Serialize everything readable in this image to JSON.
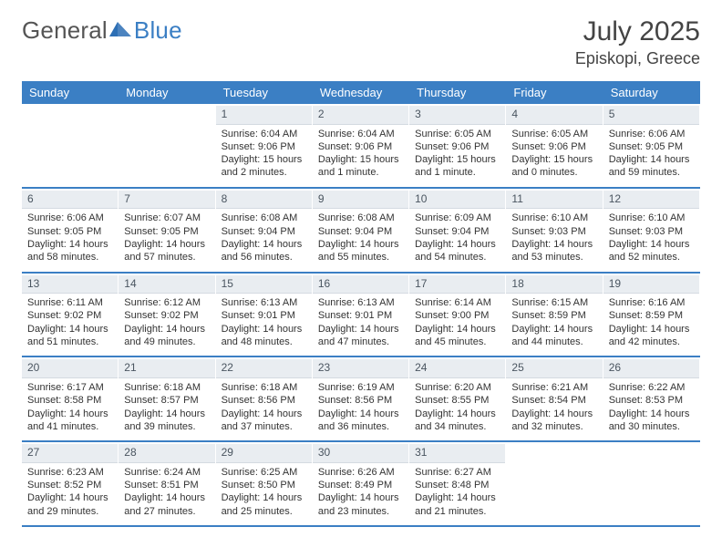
{
  "brand": {
    "text_general": "General",
    "text_blue": "Blue",
    "icon_color": "#2d6fb5"
  },
  "title": {
    "month": "July 2025",
    "location": "Episkopi, Greece"
  },
  "colors": {
    "header_bg": "#3b7fc4",
    "header_text": "#ffffff",
    "daynum_bg": "#e9edf1",
    "divider": "#3b7fc4",
    "text": "#333333"
  },
  "weekdays": [
    "Sunday",
    "Monday",
    "Tuesday",
    "Wednesday",
    "Thursday",
    "Friday",
    "Saturday"
  ],
  "calendar": {
    "first_weekday_index": 2,
    "days": [
      {
        "n": 1,
        "sunrise": "6:04 AM",
        "sunset": "9:06 PM",
        "daylight1": "Daylight: 15 hours",
        "daylight2": "and 2 minutes."
      },
      {
        "n": 2,
        "sunrise": "6:04 AM",
        "sunset": "9:06 PM",
        "daylight1": "Daylight: 15 hours",
        "daylight2": "and 1 minute."
      },
      {
        "n": 3,
        "sunrise": "6:05 AM",
        "sunset": "9:06 PM",
        "daylight1": "Daylight: 15 hours",
        "daylight2": "and 1 minute."
      },
      {
        "n": 4,
        "sunrise": "6:05 AM",
        "sunset": "9:06 PM",
        "daylight1": "Daylight: 15 hours",
        "daylight2": "and 0 minutes."
      },
      {
        "n": 5,
        "sunrise": "6:06 AM",
        "sunset": "9:05 PM",
        "daylight1": "Daylight: 14 hours",
        "daylight2": "and 59 minutes."
      },
      {
        "n": 6,
        "sunrise": "6:06 AM",
        "sunset": "9:05 PM",
        "daylight1": "Daylight: 14 hours",
        "daylight2": "and 58 minutes."
      },
      {
        "n": 7,
        "sunrise": "6:07 AM",
        "sunset": "9:05 PM",
        "daylight1": "Daylight: 14 hours",
        "daylight2": "and 57 minutes."
      },
      {
        "n": 8,
        "sunrise": "6:08 AM",
        "sunset": "9:04 PM",
        "daylight1": "Daylight: 14 hours",
        "daylight2": "and 56 minutes."
      },
      {
        "n": 9,
        "sunrise": "6:08 AM",
        "sunset": "9:04 PM",
        "daylight1": "Daylight: 14 hours",
        "daylight2": "and 55 minutes."
      },
      {
        "n": 10,
        "sunrise": "6:09 AM",
        "sunset": "9:04 PM",
        "daylight1": "Daylight: 14 hours",
        "daylight2": "and 54 minutes."
      },
      {
        "n": 11,
        "sunrise": "6:10 AM",
        "sunset": "9:03 PM",
        "daylight1": "Daylight: 14 hours",
        "daylight2": "and 53 minutes."
      },
      {
        "n": 12,
        "sunrise": "6:10 AM",
        "sunset": "9:03 PM",
        "daylight1": "Daylight: 14 hours",
        "daylight2": "and 52 minutes."
      },
      {
        "n": 13,
        "sunrise": "6:11 AM",
        "sunset": "9:02 PM",
        "daylight1": "Daylight: 14 hours",
        "daylight2": "and 51 minutes."
      },
      {
        "n": 14,
        "sunrise": "6:12 AM",
        "sunset": "9:02 PM",
        "daylight1": "Daylight: 14 hours",
        "daylight2": "and 49 minutes."
      },
      {
        "n": 15,
        "sunrise": "6:13 AM",
        "sunset": "9:01 PM",
        "daylight1": "Daylight: 14 hours",
        "daylight2": "and 48 minutes."
      },
      {
        "n": 16,
        "sunrise": "6:13 AM",
        "sunset": "9:01 PM",
        "daylight1": "Daylight: 14 hours",
        "daylight2": "and 47 minutes."
      },
      {
        "n": 17,
        "sunrise": "6:14 AM",
        "sunset": "9:00 PM",
        "daylight1": "Daylight: 14 hours",
        "daylight2": "and 45 minutes."
      },
      {
        "n": 18,
        "sunrise": "6:15 AM",
        "sunset": "8:59 PM",
        "daylight1": "Daylight: 14 hours",
        "daylight2": "and 44 minutes."
      },
      {
        "n": 19,
        "sunrise": "6:16 AM",
        "sunset": "8:59 PM",
        "daylight1": "Daylight: 14 hours",
        "daylight2": "and 42 minutes."
      },
      {
        "n": 20,
        "sunrise": "6:17 AM",
        "sunset": "8:58 PM",
        "daylight1": "Daylight: 14 hours",
        "daylight2": "and 41 minutes."
      },
      {
        "n": 21,
        "sunrise": "6:18 AM",
        "sunset": "8:57 PM",
        "daylight1": "Daylight: 14 hours",
        "daylight2": "and 39 minutes."
      },
      {
        "n": 22,
        "sunrise": "6:18 AM",
        "sunset": "8:56 PM",
        "daylight1": "Daylight: 14 hours",
        "daylight2": "and 37 minutes."
      },
      {
        "n": 23,
        "sunrise": "6:19 AM",
        "sunset": "8:56 PM",
        "daylight1": "Daylight: 14 hours",
        "daylight2": "and 36 minutes."
      },
      {
        "n": 24,
        "sunrise": "6:20 AM",
        "sunset": "8:55 PM",
        "daylight1": "Daylight: 14 hours",
        "daylight2": "and 34 minutes."
      },
      {
        "n": 25,
        "sunrise": "6:21 AM",
        "sunset": "8:54 PM",
        "daylight1": "Daylight: 14 hours",
        "daylight2": "and 32 minutes."
      },
      {
        "n": 26,
        "sunrise": "6:22 AM",
        "sunset": "8:53 PM",
        "daylight1": "Daylight: 14 hours",
        "daylight2": "and 30 minutes."
      },
      {
        "n": 27,
        "sunrise": "6:23 AM",
        "sunset": "8:52 PM",
        "daylight1": "Daylight: 14 hours",
        "daylight2": "and 29 minutes."
      },
      {
        "n": 28,
        "sunrise": "6:24 AM",
        "sunset": "8:51 PM",
        "daylight1": "Daylight: 14 hours",
        "daylight2": "and 27 minutes."
      },
      {
        "n": 29,
        "sunrise": "6:25 AM",
        "sunset": "8:50 PM",
        "daylight1": "Daylight: 14 hours",
        "daylight2": "and 25 minutes."
      },
      {
        "n": 30,
        "sunrise": "6:26 AM",
        "sunset": "8:49 PM",
        "daylight1": "Daylight: 14 hours",
        "daylight2": "and 23 minutes."
      },
      {
        "n": 31,
        "sunrise": "6:27 AM",
        "sunset": "8:48 PM",
        "daylight1": "Daylight: 14 hours",
        "daylight2": "and 21 minutes."
      }
    ]
  },
  "labels": {
    "sunrise_prefix": "Sunrise: ",
    "sunset_prefix": "Sunset: "
  }
}
